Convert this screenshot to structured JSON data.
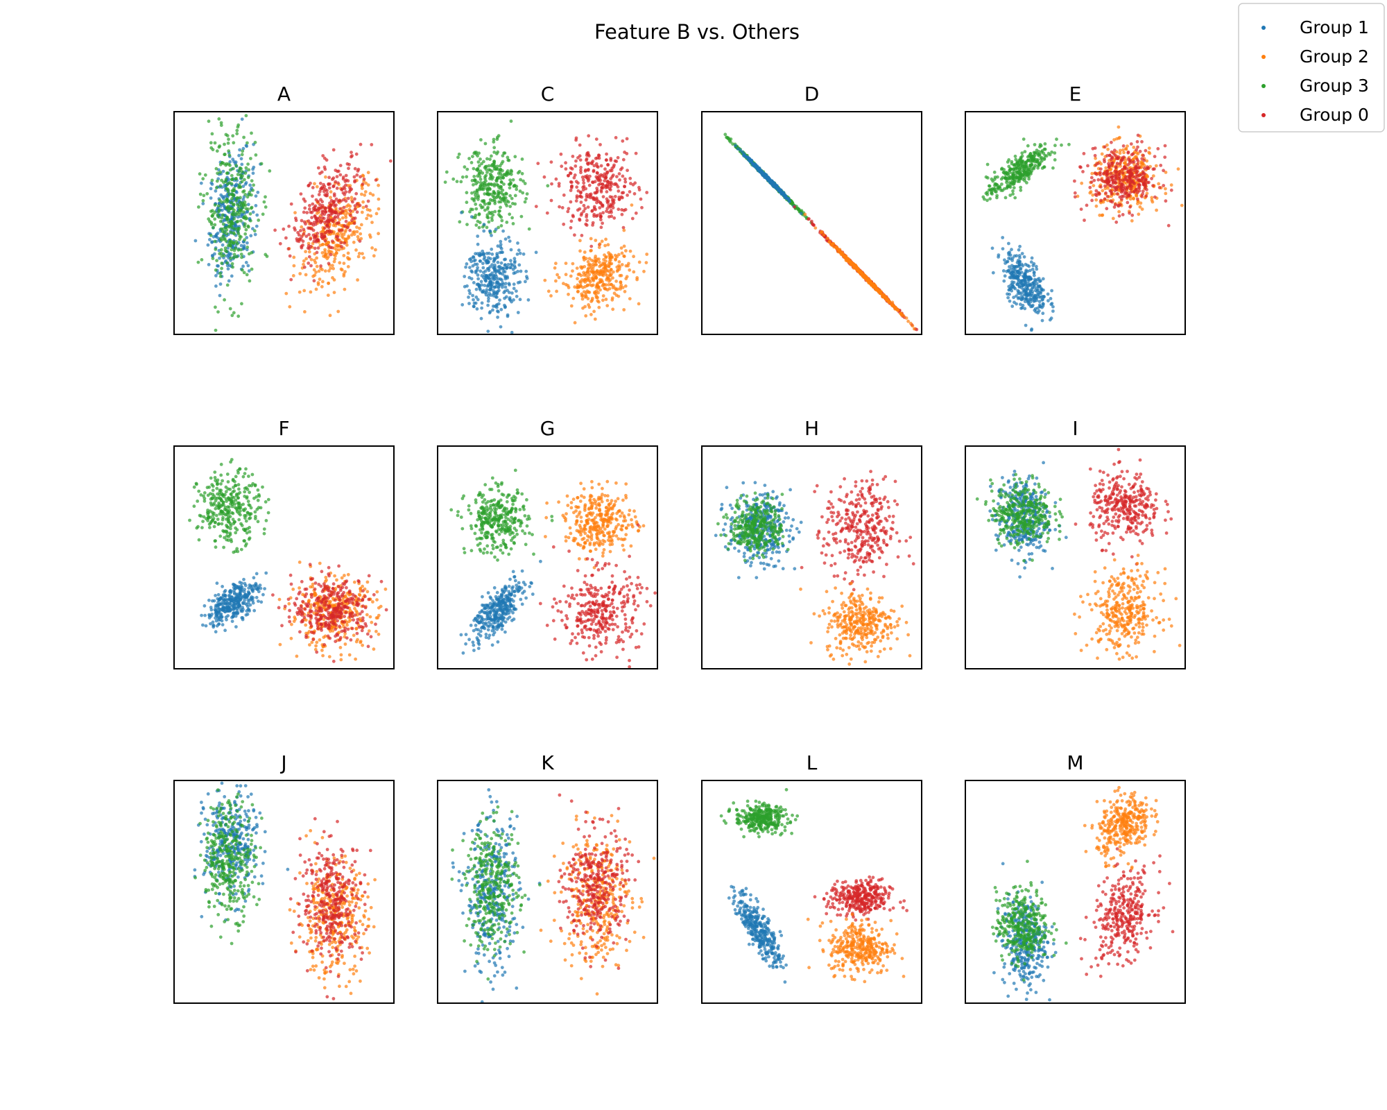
{
  "chart_data": {
    "type": "scatter",
    "title": "Feature B vs. Others",
    "legend": {
      "placement": "top-right",
      "entries": [
        {
          "label": "Group 1",
          "color": "#1f77b4"
        },
        {
          "label": "Group 2",
          "color": "#ff7f0e"
        },
        {
          "label": "Group 3",
          "color": "#2ca02c"
        },
        {
          "label": "Group 0",
          "color": "#d62728"
        }
      ]
    },
    "axes": {
      "ticks": "none",
      "grid": false
    },
    "panels": [
      {
        "label": "A",
        "clusters": [
          {
            "group": "Group 1",
            "cx": 0.26,
            "cy": 0.53,
            "sx": 0.05,
            "sy": 0.14,
            "rho": 0.2
          },
          {
            "group": "Group 3",
            "cx": 0.26,
            "cy": 0.56,
            "sx": 0.06,
            "sy": 0.18,
            "rho": 0.0
          },
          {
            "group": "Group 2",
            "cx": 0.74,
            "cy": 0.45,
            "sx": 0.09,
            "sy": 0.12,
            "rho": 0.5
          },
          {
            "group": "Group 0",
            "cx": 0.7,
            "cy": 0.55,
            "sx": 0.08,
            "sy": 0.11,
            "rho": 0.5
          }
        ]
      },
      {
        "label": "C",
        "clusters": [
          {
            "group": "Group 3",
            "cx": 0.25,
            "cy": 0.66,
            "sx": 0.07,
            "sy": 0.09,
            "rho": 0.0
          },
          {
            "group": "Group 0",
            "cx": 0.73,
            "cy": 0.66,
            "sx": 0.09,
            "sy": 0.09,
            "rho": 0.0
          },
          {
            "group": "Group 1",
            "cx": 0.25,
            "cy": 0.26,
            "sx": 0.06,
            "sy": 0.09,
            "rho": 0.0
          },
          {
            "group": "Group 2",
            "cx": 0.73,
            "cy": 0.26,
            "sx": 0.08,
            "sy": 0.07,
            "rho": 0.2
          }
        ]
      },
      {
        "label": "D",
        "clusters": [
          {
            "group": "Group 3",
            "cx": 0.3,
            "cy": 0.7,
            "sx": 0.08,
            "sy": 0.08,
            "rho": -1
          },
          {
            "group": "Group 1",
            "cx": 0.3,
            "cy": 0.7,
            "sx": 0.05,
            "sy": 0.05,
            "rho": -1
          },
          {
            "group": "Group 0",
            "cx": 0.72,
            "cy": 0.28,
            "sx": 0.09,
            "sy": 0.09,
            "rho": -1
          },
          {
            "group": "Group 2",
            "cx": 0.74,
            "cy": 0.26,
            "sx": 0.08,
            "sy": 0.08,
            "rho": -1
          }
        ]
      },
      {
        "label": "E",
        "clusters": [
          {
            "group": "Group 3",
            "cx": 0.24,
            "cy": 0.73,
            "sx": 0.07,
            "sy": 0.06,
            "rho": 0.8
          },
          {
            "group": "Group 1",
            "cx": 0.27,
            "cy": 0.23,
            "sx": 0.05,
            "sy": 0.07,
            "rho": -0.5
          },
          {
            "group": "Group 2",
            "cx": 0.73,
            "cy": 0.7,
            "sx": 0.08,
            "sy": 0.07,
            "rho": 0.0
          },
          {
            "group": "Group 0",
            "cx": 0.72,
            "cy": 0.7,
            "sx": 0.08,
            "sy": 0.07,
            "rho": 0.0
          }
        ]
      },
      {
        "label": "F",
        "clusters": [
          {
            "group": "Group 3",
            "cx": 0.25,
            "cy": 0.72,
            "sx": 0.07,
            "sy": 0.08,
            "rho": 0.0
          },
          {
            "group": "Group 1",
            "cx": 0.27,
            "cy": 0.3,
            "sx": 0.06,
            "sy": 0.05,
            "rho": 0.6
          },
          {
            "group": "Group 2",
            "cx": 0.72,
            "cy": 0.25,
            "sx": 0.1,
            "sy": 0.08,
            "rho": 0.0
          },
          {
            "group": "Group 0",
            "cx": 0.72,
            "cy": 0.27,
            "sx": 0.09,
            "sy": 0.07,
            "rho": 0.0
          }
        ]
      },
      {
        "label": "G",
        "clusters": [
          {
            "group": "Group 3",
            "cx": 0.27,
            "cy": 0.66,
            "sx": 0.07,
            "sy": 0.07,
            "rho": 0.0
          },
          {
            "group": "Group 2",
            "cx": 0.74,
            "cy": 0.66,
            "sx": 0.08,
            "sy": 0.07,
            "rho": 0.0
          },
          {
            "group": "Group 1",
            "cx": 0.27,
            "cy": 0.26,
            "sx": 0.06,
            "sy": 0.07,
            "rho": 0.7
          },
          {
            "group": "Group 0",
            "cx": 0.74,
            "cy": 0.26,
            "sx": 0.09,
            "sy": 0.09,
            "rho": 0.0
          }
        ]
      },
      {
        "label": "H",
        "clusters": [
          {
            "group": "Group 1",
            "cx": 0.26,
            "cy": 0.63,
            "sx": 0.07,
            "sy": 0.08,
            "rho": 0.0
          },
          {
            "group": "Group 3",
            "cx": 0.25,
            "cy": 0.64,
            "sx": 0.06,
            "sy": 0.06,
            "rho": 0.0
          },
          {
            "group": "Group 0",
            "cx": 0.72,
            "cy": 0.62,
            "sx": 0.08,
            "sy": 0.11,
            "rho": 0.0
          },
          {
            "group": "Group 2",
            "cx": 0.72,
            "cy": 0.21,
            "sx": 0.08,
            "sy": 0.07,
            "rho": 0.0
          }
        ]
      },
      {
        "label": "I",
        "clusters": [
          {
            "group": "Group 1",
            "cx": 0.26,
            "cy": 0.68,
            "sx": 0.06,
            "sy": 0.09,
            "rho": 0.0
          },
          {
            "group": "Group 3",
            "cx": 0.26,
            "cy": 0.7,
            "sx": 0.07,
            "sy": 0.07,
            "rho": 0.0
          },
          {
            "group": "Group 0",
            "cx": 0.73,
            "cy": 0.72,
            "sx": 0.08,
            "sy": 0.08,
            "rho": 0.0
          },
          {
            "group": "Group 2",
            "cx": 0.72,
            "cy": 0.26,
            "sx": 0.08,
            "sy": 0.09,
            "rho": 0.0
          }
        ]
      },
      {
        "label": "J",
        "clusters": [
          {
            "group": "Group 1",
            "cx": 0.26,
            "cy": 0.71,
            "sx": 0.06,
            "sy": 0.12,
            "rho": 0.0
          },
          {
            "group": "Group 3",
            "cx": 0.25,
            "cy": 0.65,
            "sx": 0.06,
            "sy": 0.13,
            "rho": 0.0
          },
          {
            "group": "Group 2",
            "cx": 0.72,
            "cy": 0.38,
            "sx": 0.08,
            "sy": 0.13,
            "rho": 0.0
          },
          {
            "group": "Group 0",
            "cx": 0.72,
            "cy": 0.46,
            "sx": 0.07,
            "sy": 0.13,
            "rho": 0.0
          }
        ]
      },
      {
        "label": "K",
        "clusters": [
          {
            "group": "Group 1",
            "cx": 0.25,
            "cy": 0.48,
            "sx": 0.06,
            "sy": 0.17,
            "rho": 0.0
          },
          {
            "group": "Group 3",
            "cx": 0.25,
            "cy": 0.52,
            "sx": 0.06,
            "sy": 0.14,
            "rho": 0.0
          },
          {
            "group": "Group 2",
            "cx": 0.72,
            "cy": 0.47,
            "sx": 0.08,
            "sy": 0.15,
            "rho": 0.0
          },
          {
            "group": "Group 0",
            "cx": 0.72,
            "cy": 0.52,
            "sx": 0.07,
            "sy": 0.13,
            "rho": 0.0
          }
        ]
      },
      {
        "label": "L",
        "clusters": [
          {
            "group": "Group 3",
            "cx": 0.27,
            "cy": 0.83,
            "sx": 0.06,
            "sy": 0.03,
            "rho": 0.0
          },
          {
            "group": "Group 1",
            "cx": 0.26,
            "cy": 0.33,
            "sx": 0.05,
            "sy": 0.08,
            "rho": -0.8
          },
          {
            "group": "Group 0",
            "cx": 0.72,
            "cy": 0.47,
            "sx": 0.07,
            "sy": 0.04,
            "rho": 0.0
          },
          {
            "group": "Group 2",
            "cx": 0.72,
            "cy": 0.25,
            "sx": 0.07,
            "sy": 0.06,
            "rho": 0.0
          }
        ]
      },
      {
        "label": "M",
        "clusters": [
          {
            "group": "Group 1",
            "cx": 0.27,
            "cy": 0.27,
            "sx": 0.05,
            "sy": 0.1,
            "rho": 0.0
          },
          {
            "group": "Group 3",
            "cx": 0.26,
            "cy": 0.35,
            "sx": 0.06,
            "sy": 0.08,
            "rho": 0.0
          },
          {
            "group": "Group 2",
            "cx": 0.72,
            "cy": 0.8,
            "sx": 0.06,
            "sy": 0.07,
            "rho": 0.3
          },
          {
            "group": "Group 0",
            "cx": 0.72,
            "cy": 0.39,
            "sx": 0.07,
            "sy": 0.1,
            "rho": 0.3
          }
        ]
      }
    ]
  }
}
